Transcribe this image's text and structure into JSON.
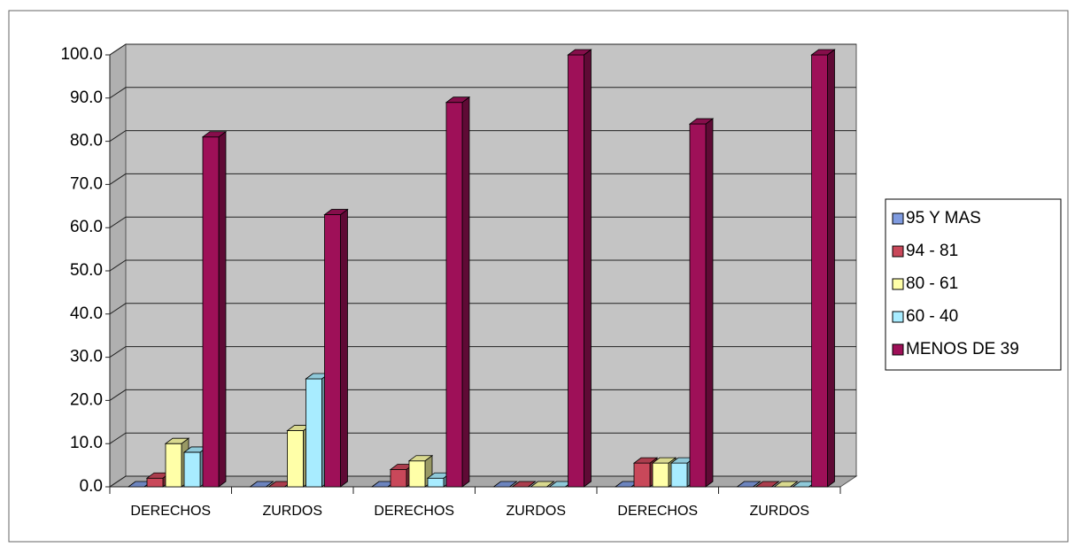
{
  "chart_data": {
    "type": "bar3d",
    "categories": [
      "DERECHOS",
      "ZURDOS",
      "DERECHOS",
      "ZURDOS",
      "DERECHOS",
      "ZURDOS"
    ],
    "series": [
      {
        "name": "95 Y MAS",
        "color": "#7f9be0",
        "values": [
          0,
          0,
          0,
          0,
          0,
          0
        ]
      },
      {
        "name": "94 - 81",
        "color": "#c9485a",
        "values": [
          2,
          0,
          4,
          0,
          5.5,
          0
        ]
      },
      {
        "name": "80 - 61",
        "color": "#ffffa8",
        "values": [
          10,
          13,
          6,
          0,
          5.5,
          0
        ]
      },
      {
        "name": "60 - 40",
        "color": "#a8ecff",
        "values": [
          8,
          25,
          2,
          0,
          5.5,
          0
        ]
      },
      {
        "name": "MENOS DE 39",
        "color": "#9e1058",
        "values": [
          81,
          63,
          89,
          100,
          84,
          100
        ]
      }
    ],
    "ylim": [
      0,
      100
    ],
    "yticks": [
      {
        "value": 0,
        "label": "0.0"
      },
      {
        "value": 10,
        "label": "10.0"
      },
      {
        "value": 20,
        "label": "20.0"
      },
      {
        "value": 30,
        "label": "30.0"
      },
      {
        "value": 40,
        "label": "40.0"
      },
      {
        "value": 50,
        "label": "50.0"
      },
      {
        "value": 60,
        "label": "60.0"
      },
      {
        "value": 70,
        "label": "70.0"
      },
      {
        "value": 80,
        "label": "80.0"
      },
      {
        "value": 90,
        "label": "90.0"
      },
      {
        "value": 100,
        "label": "100.0"
      }
    ],
    "grid": true,
    "legend": "right"
  }
}
